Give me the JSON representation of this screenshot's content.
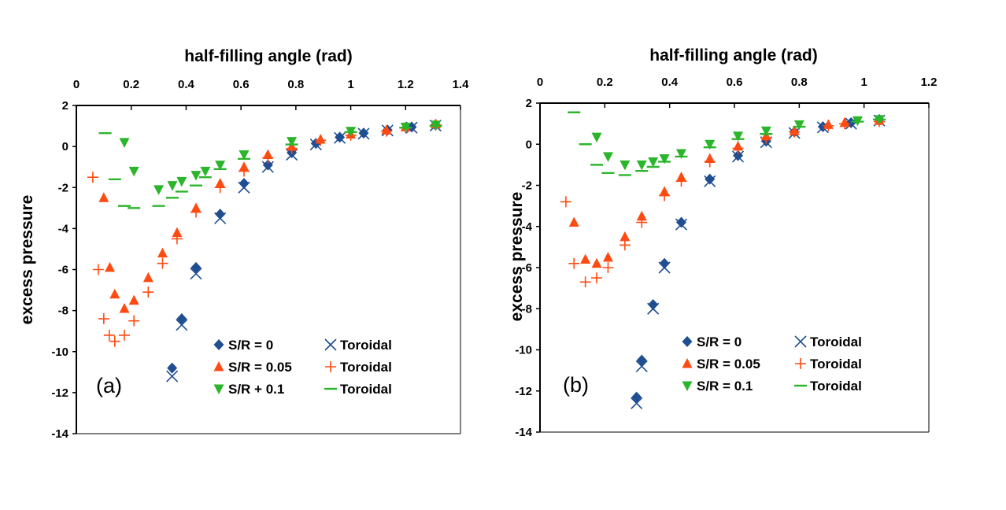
{
  "colors": {
    "blue": "#1f4e91",
    "orange": "#ff4b12",
    "green": "#2bb52b",
    "axis": "#000000"
  },
  "chart_data": [
    {
      "type": "scatter",
      "panel_label": "(a)",
      "xlabel": "half-filling angle (rad)",
      "ylabel": "excess pressure",
      "xlim": [
        0,
        1.4
      ],
      "ylim": [
        -14,
        2
      ],
      "x_ticks": [
        "0",
        "0.2",
        "0.4",
        "0.6",
        "0.8",
        "1",
        "1.2",
        "1.4"
      ],
      "y_ticks": [
        "2",
        "0",
        "-2",
        "-4",
        "-6",
        "-8",
        "-10",
        "-12",
        "-14"
      ],
      "x_axis_position": "top",
      "grid": false,
      "legend_position": "bottom-right",
      "series": [
        {
          "name": "S/R = 0",
          "marker": "diamond",
          "color": "blue",
          "x": [
            0.349,
            0.384,
            0.436,
            0.524,
            0.611,
            0.698,
            0.785,
            0.873,
            0.96,
            1.047,
            1.134,
            1.222,
            1.309
          ],
          "y": [
            -10.8,
            -8.4,
            -5.9,
            -3.3,
            -1.8,
            -0.9,
            -0.3,
            0.15,
            0.45,
            0.65,
            0.8,
            0.95,
            1.05
          ]
        },
        {
          "name": "Toroidal",
          "marker": "x",
          "color": "blue",
          "x": [
            0.349,
            0.384,
            0.436,
            0.524,
            0.611,
            0.698,
            0.785,
            0.873,
            0.96,
            1.047,
            1.134,
            1.222,
            1.309
          ],
          "y": [
            -11.2,
            -8.7,
            -6.2,
            -3.5,
            -2.0,
            -1.0,
            -0.4,
            0.1,
            0.42,
            0.62,
            0.78,
            0.92,
            1.02
          ]
        },
        {
          "name": "S/R = 0.05",
          "marker": "triangle-up",
          "color": "orange",
          "x": [
            0.1,
            0.122,
            0.14,
            0.175,
            0.21,
            0.262,
            0.314,
            0.367,
            0.436,
            0.524,
            0.611,
            0.698,
            0.785,
            0.89,
            1.0,
            1.13,
            1.2,
            1.31
          ],
          "y": [
            -2.5,
            -5.9,
            -7.2,
            -7.9,
            -7.5,
            -6.4,
            -5.2,
            -4.2,
            -3.0,
            -1.8,
            -1.0,
            -0.4,
            0.0,
            0.35,
            0.6,
            0.8,
            0.95,
            1.1
          ]
        },
        {
          "name": "Toroidal",
          "marker": "plus",
          "color": "orange",
          "x": [
            0.06,
            0.08,
            0.1,
            0.12,
            0.14,
            0.175,
            0.21,
            0.262,
            0.314,
            0.367,
            0.436,
            0.524,
            0.611,
            0.698,
            0.785,
            0.89,
            1.0,
            1.13,
            1.2,
            1.31
          ],
          "y": [
            -1.5,
            -6.0,
            -8.4,
            -9.2,
            -9.5,
            -9.2,
            -8.5,
            -7.1,
            -5.7,
            -4.5,
            -3.2,
            -2.0,
            -1.2,
            -0.55,
            -0.1,
            0.3,
            0.55,
            0.75,
            0.9,
            1.05
          ]
        },
        {
          "name": "S/R + 0.1",
          "marker": "triangle-down",
          "color": "green",
          "x": [
            0.175,
            0.21,
            0.3,
            0.35,
            0.384,
            0.436,
            0.47,
            0.524,
            0.611,
            0.785,
            1.0,
            1.2,
            1.31
          ],
          "y": [
            0.2,
            -1.2,
            -2.1,
            -1.9,
            -1.7,
            -1.4,
            -1.2,
            -0.9,
            -0.4,
            0.25,
            0.75,
            0.95,
            1.05
          ]
        },
        {
          "name": "Toroidal",
          "marker": "dash",
          "color": "green",
          "x": [
            0.105,
            0.14,
            0.175,
            0.21,
            0.3,
            0.35,
            0.384,
            0.436,
            0.47,
            0.524,
            0.611,
            0.785,
            1.0,
            1.2,
            1.31
          ],
          "y": [
            0.65,
            -1.6,
            -2.9,
            -3.0,
            -2.9,
            -2.5,
            -2.2,
            -1.9,
            -1.5,
            -1.1,
            -0.6,
            0.1,
            0.7,
            0.92,
            1.0
          ]
        }
      ],
      "legend": [
        {
          "label": "S/R = 0",
          "marker": "diamond",
          "color": "blue"
        },
        {
          "label": "Toroidal",
          "marker": "x",
          "color": "blue"
        },
        {
          "label": "S/R = 0.05",
          "marker": "triangle-up",
          "color": "orange"
        },
        {
          "label": "Toroidal",
          "marker": "plus",
          "color": "orange"
        },
        {
          "label": "S/R + 0.1",
          "marker": "triangle-down",
          "color": "green"
        },
        {
          "label": "Toroidal",
          "marker": "dash",
          "color": "green"
        }
      ]
    },
    {
      "type": "scatter",
      "panel_label": "(b)",
      "xlabel": "half-filling angle (rad)",
      "ylabel": "excess pressure",
      "xlim": [
        0,
        1.2
      ],
      "ylim": [
        -14,
        2
      ],
      "x_ticks": [
        "0",
        "0.2",
        "0.4",
        "0.6",
        "0.8",
        "1",
        "1.2"
      ],
      "y_ticks": [
        "2",
        "0",
        "-2",
        "-4",
        "-6",
        "-8",
        "-10",
        "-12",
        "-14"
      ],
      "x_axis_position": "top",
      "grid": false,
      "legend_position": "bottom-right",
      "series": [
        {
          "name": "S/R = 0",
          "marker": "diamond",
          "color": "blue",
          "x": [
            0.298,
            0.314,
            0.349,
            0.384,
            0.436,
            0.524,
            0.611,
            0.698,
            0.785,
            0.873,
            0.96,
            1.047
          ],
          "y": [
            -12.3,
            -10.5,
            -7.8,
            -5.8,
            -3.8,
            -1.7,
            -0.55,
            0.15,
            0.6,
            0.85,
            1.05,
            1.2
          ]
        },
        {
          "name": "Toroidal",
          "marker": "x",
          "color": "blue",
          "x": [
            0.298,
            0.314,
            0.349,
            0.384,
            0.436,
            0.524,
            0.611,
            0.698,
            0.785,
            0.873,
            0.96,
            1.047
          ],
          "y": [
            -12.6,
            -10.8,
            -8.0,
            -6.0,
            -3.9,
            -1.8,
            -0.6,
            0.1,
            0.55,
            0.82,
            1.0,
            1.15
          ]
        },
        {
          "name": "S/R = 0.05",
          "marker": "triangle-up",
          "color": "orange",
          "x": [
            0.105,
            0.14,
            0.175,
            0.21,
            0.262,
            0.314,
            0.384,
            0.436,
            0.524,
            0.611,
            0.698,
            0.785,
            0.89,
            0.94,
            1.047
          ],
          "y": [
            -3.8,
            -5.6,
            -5.8,
            -5.5,
            -4.5,
            -3.5,
            -2.3,
            -1.6,
            -0.7,
            -0.1,
            0.4,
            0.65,
            0.95,
            1.05,
            1.15
          ]
        },
        {
          "name": "Toroidal",
          "marker": "plus",
          "color": "orange",
          "x": [
            0.08,
            0.105,
            0.14,
            0.175,
            0.21,
            0.262,
            0.314,
            0.384,
            0.436,
            0.524,
            0.611,
            0.698,
            0.785,
            0.89,
            0.94,
            1.047
          ],
          "y": [
            -2.8,
            -5.8,
            -6.7,
            -6.5,
            -6.0,
            -4.9,
            -3.8,
            -2.5,
            -1.8,
            -0.85,
            -0.2,
            0.3,
            0.6,
            0.9,
            1.0,
            1.1
          ]
        },
        {
          "name": "S/R = 0.1",
          "marker": "triangle-down",
          "color": "green",
          "x": [
            0.175,
            0.21,
            0.262,
            0.314,
            0.349,
            0.384,
            0.436,
            0.524,
            0.611,
            0.698,
            0.8,
            0.98,
            1.047
          ],
          "y": [
            0.35,
            -0.6,
            -1.0,
            -1.0,
            -0.85,
            -0.7,
            -0.45,
            0.0,
            0.4,
            0.65,
            0.95,
            1.15,
            1.2
          ]
        },
        {
          "name": "Toroidal",
          "marker": "dash",
          "color": "green",
          "x": [
            0.105,
            0.14,
            0.175,
            0.21,
            0.262,
            0.314,
            0.349,
            0.384,
            0.436,
            0.524,
            0.611,
            0.698,
            0.8,
            0.98,
            1.047
          ],
          "y": [
            1.55,
            0.0,
            -1.0,
            -1.4,
            -1.5,
            -1.3,
            -1.1,
            -0.85,
            -0.6,
            -0.15,
            0.25,
            0.5,
            0.85,
            1.1,
            1.2
          ]
        }
      ],
      "legend": [
        {
          "label": "S/R = 0",
          "marker": "diamond",
          "color": "blue"
        },
        {
          "label": "Toroidal",
          "marker": "x",
          "color": "blue"
        },
        {
          "label": "S/R = 0.05",
          "marker": "triangle-up",
          "color": "orange"
        },
        {
          "label": "Toroidal",
          "marker": "plus",
          "color": "orange"
        },
        {
          "label": "S/R = 0.1",
          "marker": "triangle-down",
          "color": "green"
        },
        {
          "label": "Toroidal",
          "marker": "dash",
          "color": "green"
        }
      ]
    }
  ]
}
